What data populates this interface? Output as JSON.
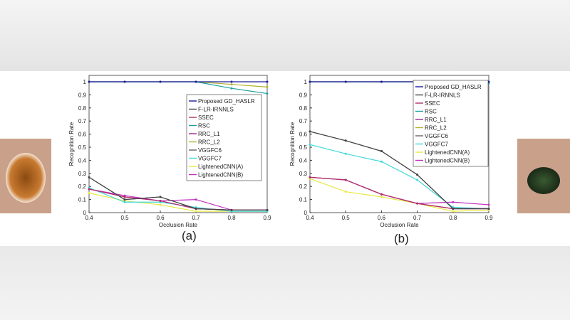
{
  "chart_data": [
    {
      "type": "line",
      "caption": "(a)",
      "xlabel": "Occlusion Rate",
      "ylabel": "Recognition Rate",
      "x": [
        0.4,
        0.5,
        0.6,
        0.7,
        0.8,
        0.9
      ],
      "xlim": [
        0.4,
        0.9
      ],
      "ylim": [
        0,
        1
      ],
      "xticks": [
        "0.4",
        "0.5",
        "0.6",
        "0.7",
        "0.8",
        "0.9"
      ],
      "yticks": [
        "0",
        "0.1",
        "0.2",
        "0.3",
        "0.4",
        "0.5",
        "0.6",
        "0.7",
        "0.8",
        "0.9",
        "1"
      ],
      "legend": "right",
      "series": [
        {
          "name": "Proposed GD_HASLR",
          "color": "#1a1a9c",
          "values": [
            1,
            1,
            1,
            1,
            1,
            1
          ]
        },
        {
          "name": "F-LR-IRNNLS",
          "color": "#444444",
          "values": [
            0.27,
            0.1,
            0.12,
            0.03,
            0.02,
            0.02
          ]
        },
        {
          "name": "SSEC",
          "color": "#b0306a",
          "values": [
            0.18,
            0.12,
            0.09,
            0.03,
            0.02,
            0.02
          ]
        },
        {
          "name": "RSC",
          "color": "#20a0a0",
          "values": [
            1,
            1,
            1,
            1,
            0.95,
            0.91
          ]
        },
        {
          "name": "RRC_L1",
          "color": "#a02890",
          "values": [
            0.18,
            0.12,
            0.09,
            0.03,
            0.02,
            0.02
          ]
        },
        {
          "name": "RRC_L2",
          "color": "#b0b030",
          "values": [
            1,
            1,
            1,
            1,
            0.98,
            0.96
          ]
        },
        {
          "name": "VGGFC6",
          "color": "#666666",
          "values": [
            0.27,
            0.1,
            0.12,
            0.03,
            0.02,
            0.02
          ]
        },
        {
          "name": "VGGFC7",
          "color": "#40d8d8",
          "values": [
            0.19,
            0.08,
            0.08,
            0.04,
            0.01,
            0.01
          ]
        },
        {
          "name": "LightenedCNN(A)",
          "color": "#e8e840",
          "values": [
            0.15,
            0.09,
            0.06,
            0.01,
            0.01,
            0.01
          ]
        },
        {
          "name": "LightenedCNN(B)",
          "color": "#c030c0",
          "values": [
            0.18,
            0.13,
            0.09,
            0.1,
            0.02,
            0.02
          ]
        }
      ]
    },
    {
      "type": "line",
      "caption": "(b)",
      "xlabel": "Occlusion Rate",
      "ylabel": "Recognition Rate",
      "x": [
        0.4,
        0.5,
        0.6,
        0.7,
        0.8,
        0.9
      ],
      "xlim": [
        0.4,
        0.9
      ],
      "ylim": [
        0,
        1
      ],
      "xticks": [
        "0.4",
        "0.5",
        "0.6",
        "0.7",
        "0.8",
        "0.9"
      ],
      "yticks": [
        "0",
        "0.1",
        "0.2",
        "0.3",
        "0.4",
        "0.5",
        "0.6",
        "0.7",
        "0.8",
        "0.9",
        "1"
      ],
      "legend": "top-right",
      "series": [
        {
          "name": "Proposed GD_HASLR",
          "color": "#1a1a9c",
          "values": [
            1,
            1,
            1,
            1,
            1,
            1
          ]
        },
        {
          "name": "F-LR-IRNNLS",
          "color": "#444444",
          "values": [
            0.62,
            0.55,
            0.47,
            0.29,
            0.03,
            0.03
          ]
        },
        {
          "name": "SSEC",
          "color": "#b0306a",
          "values": [
            0.27,
            0.25,
            0.14,
            0.07,
            0.03,
            0.03
          ]
        },
        {
          "name": "RSC",
          "color": "#20a0a0",
          "values": [
            1,
            1,
            1,
            1,
            1,
            0.99
          ]
        },
        {
          "name": "RRC_L1",
          "color": "#a02890",
          "values": [
            0.27,
            0.25,
            0.14,
            0.07,
            0.03,
            0.03
          ]
        },
        {
          "name": "RRC_L2",
          "color": "#b0b030",
          "values": [
            1,
            1,
            1,
            1,
            1,
            0.99
          ]
        },
        {
          "name": "VGGFC6",
          "color": "#666666",
          "values": [
            0.62,
            0.55,
            0.47,
            0.29,
            0.03,
            0.03
          ]
        },
        {
          "name": "VGGFC7",
          "color": "#40d8d8",
          "values": [
            0.52,
            0.45,
            0.39,
            0.25,
            0.04,
            0.03
          ]
        },
        {
          "name": "LightenedCNN(A)",
          "color": "#e8e840",
          "values": [
            0.26,
            0.16,
            0.12,
            0.07,
            0.01,
            0.02
          ]
        },
        {
          "name": "LightenedCNN(B)",
          "color": "#c030c0",
          "values": [
            0.27,
            0.25,
            0.14,
            0.07,
            0.08,
            0.06
          ]
        }
      ]
    }
  ]
}
